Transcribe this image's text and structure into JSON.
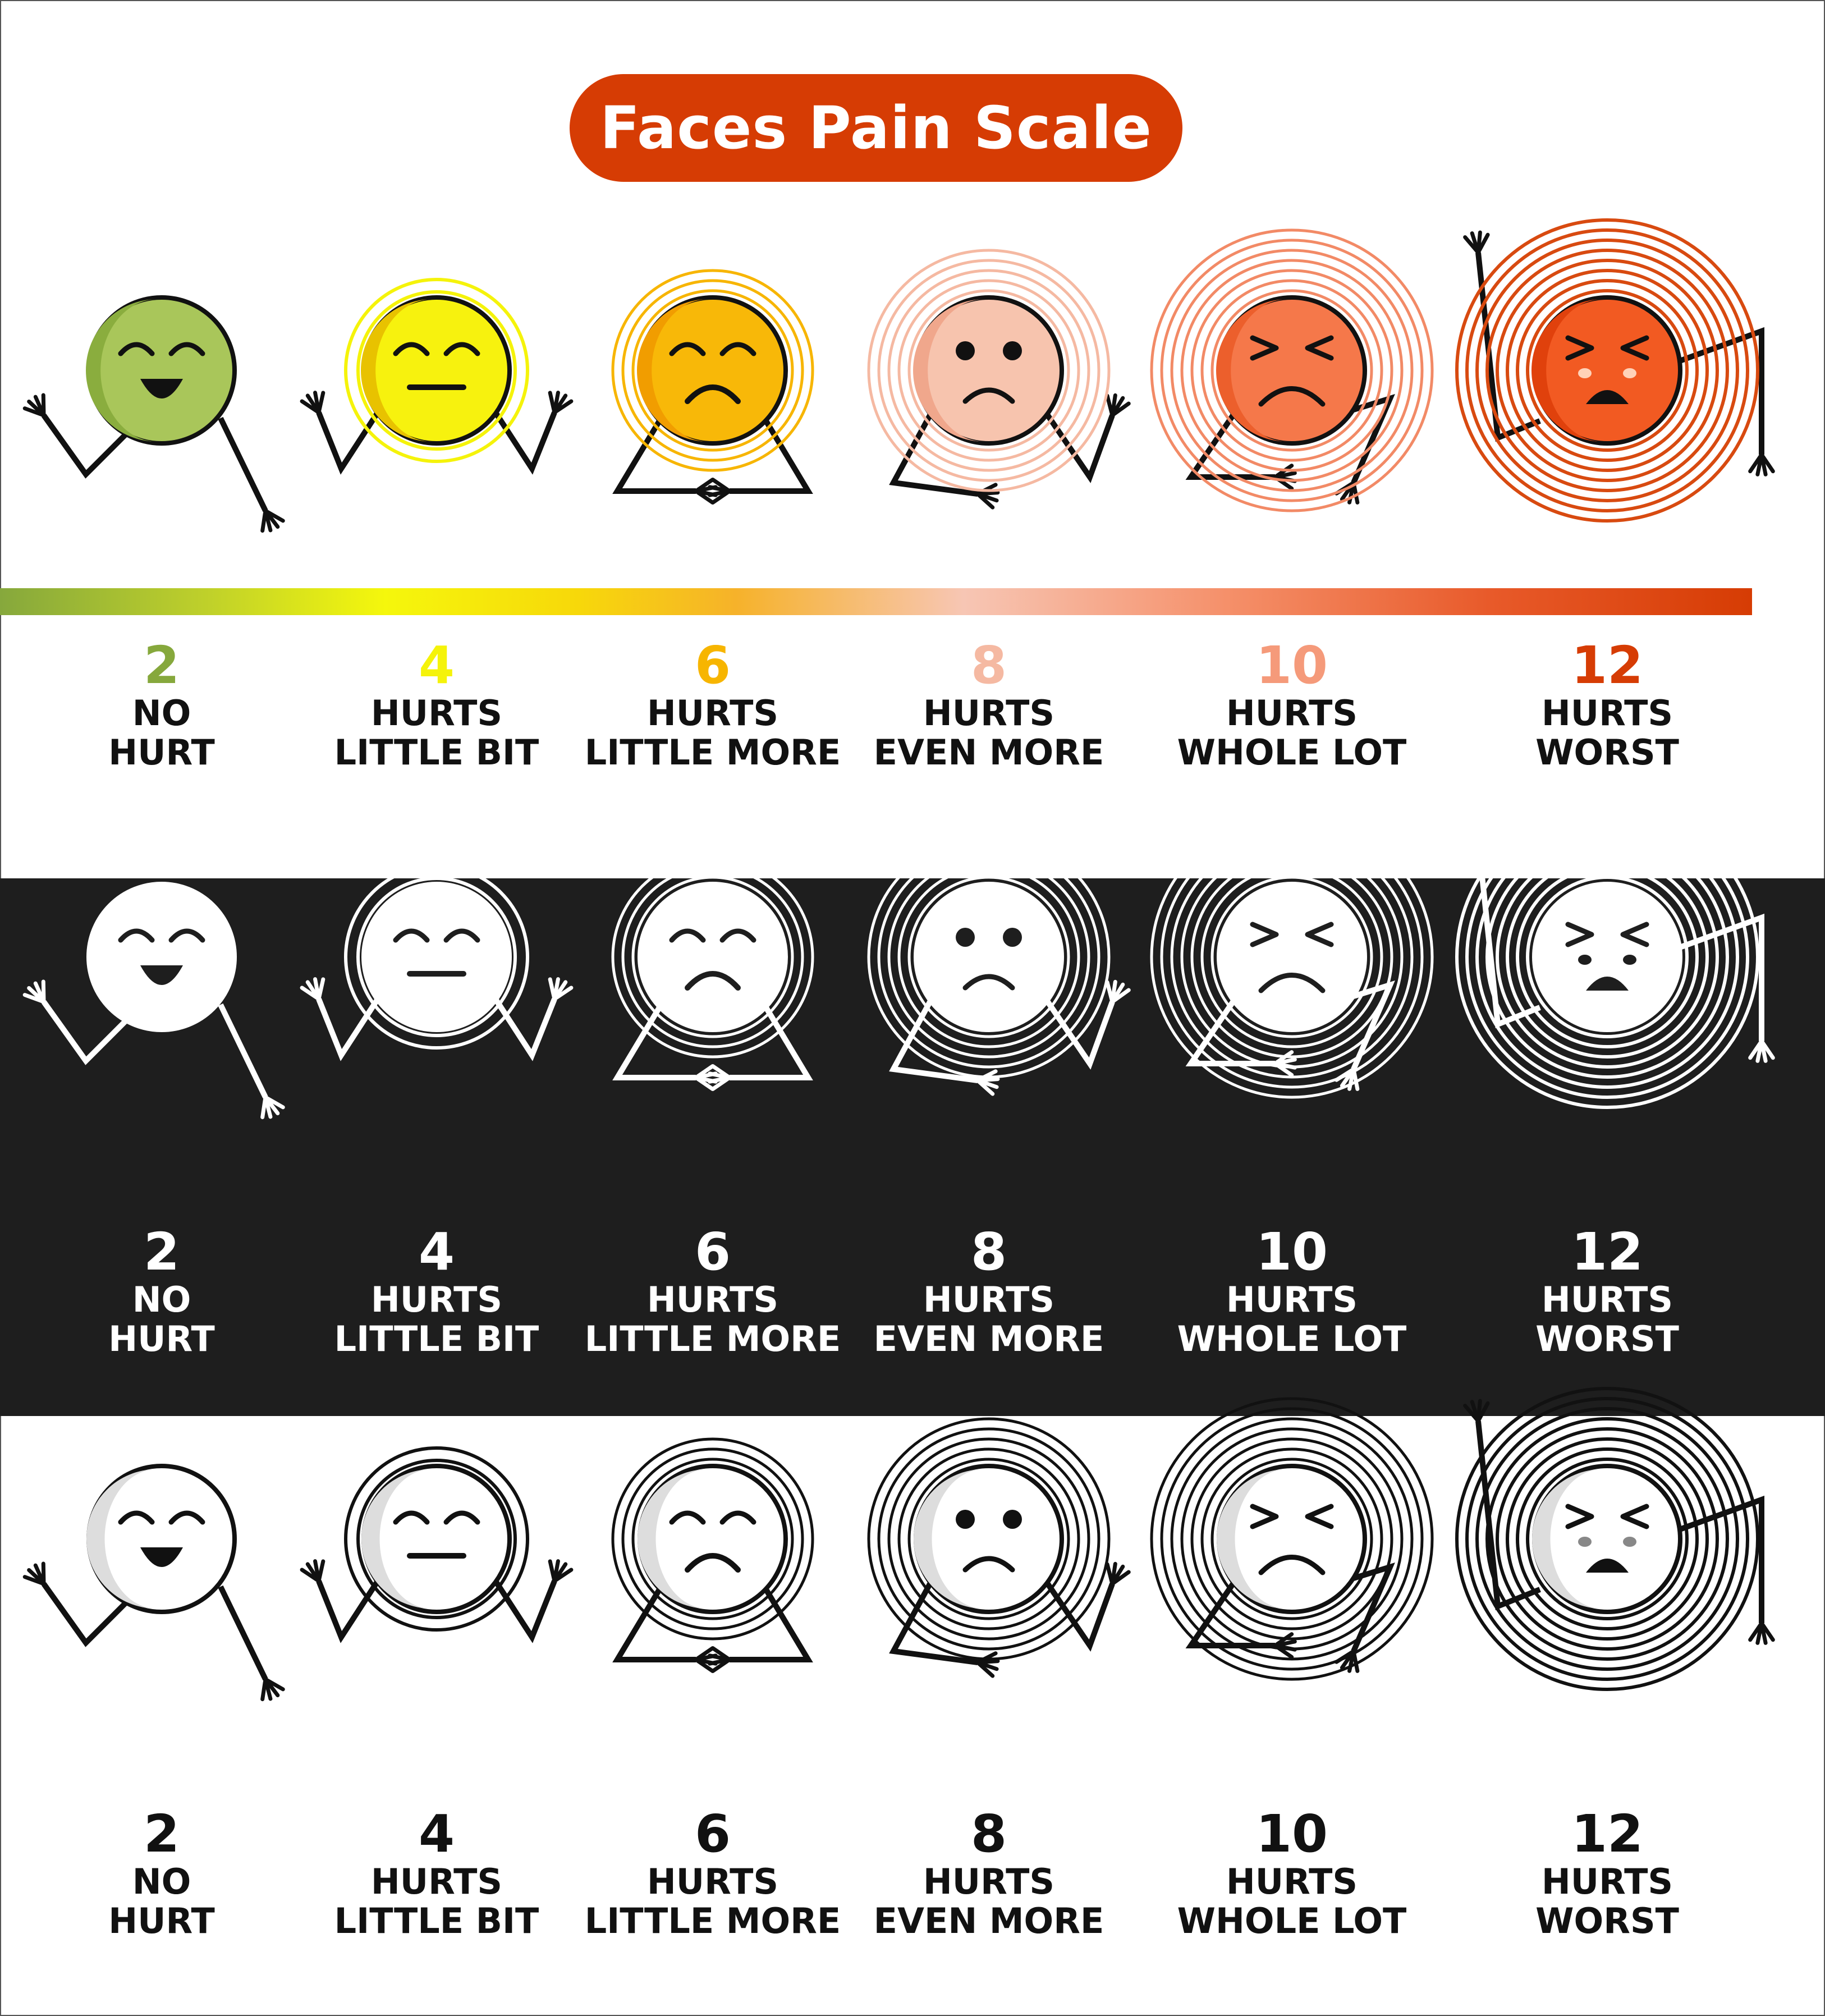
{
  "title": "Faces Pain Scale",
  "levels": [
    {
      "number": "2",
      "line1": "NO",
      "line2": "HURT",
      "color": "#86a83c",
      "fill": "#a9c65a",
      "shade": "#8aad3e",
      "ring": "#e8e600"
    },
    {
      "number": "4",
      "line1": "HURTS",
      "line2": "LITTLE BIT",
      "color": "#f5f30a",
      "fill": "#f7f20e",
      "shade": "#e8c200",
      "ring": "#f5f30a"
    },
    {
      "number": "6",
      "line1": "HURTS",
      "line2": "LITTLE MORE",
      "color": "#f7b500",
      "fill": "#f8b808",
      "shade": "#f19d00",
      "ring": "#f7b500"
    },
    {
      "number": "8",
      "line1": "HURTS",
      "line2": "EVEN MORE",
      "color": "#f5b9a2",
      "fill": "#f7c4ae",
      "shade": "#f0a78c",
      "ring": "#f5b9a2"
    },
    {
      "number": "10",
      "line1": "HURTS",
      "line2": "WHOLE LOT",
      "color": "#f59a7a",
      "fill": "#f5784a",
      "shade": "#ec5f2c",
      "ring": "#f28a66"
    },
    {
      "number": "12",
      "line1": "HURTS",
      "line2": "WORST",
      "color": "#d63c04",
      "fill": "#f25a22",
      "shade": "#e0410c",
      "ring": "#d84a10"
    }
  ],
  "rows": [
    {
      "style": "color",
      "text_color": "#111111"
    },
    {
      "style": "inverse",
      "text_color": "#ffffff"
    },
    {
      "style": "outline",
      "text_color": "#111111"
    }
  ],
  "icons": [
    "face-icon-no-hurt",
    "face-icon-hurts-little-bit",
    "face-icon-hurts-little-more",
    "face-icon-hurts-even-more",
    "face-icon-hurts-whole-lot",
    "face-icon-hurts-worst"
  ]
}
